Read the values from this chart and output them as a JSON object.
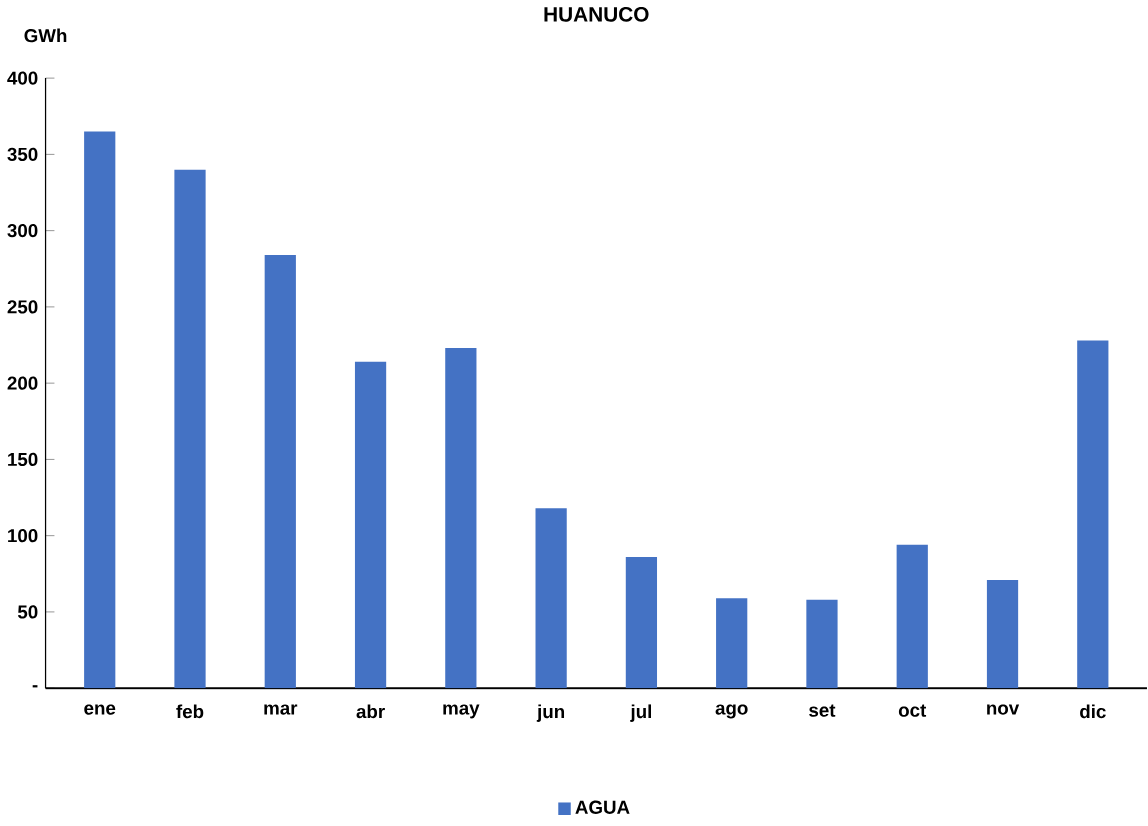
{
  "chart_data": {
    "type": "bar",
    "title": "HUANUCO",
    "ylabel": "GWh",
    "categories": [
      "ene",
      "feb",
      "mar",
      "abr",
      "may",
      "jun",
      "jul",
      "ago",
      "set",
      "oct",
      "nov",
      "dic"
    ],
    "series": [
      {
        "name": "AGUA",
        "color": "#4472c4",
        "values": [
          365,
          340,
          284,
          214,
          223,
          118,
          86,
          59,
          58,
          94,
          71,
          228
        ]
      }
    ],
    "ylim": [
      0,
      400
    ],
    "yticks": [
      {
        "value": 0,
        "label": "-"
      },
      50,
      100,
      150,
      200,
      250,
      300,
      350,
      400
    ],
    "legend": "bottom",
    "grid": false
  }
}
